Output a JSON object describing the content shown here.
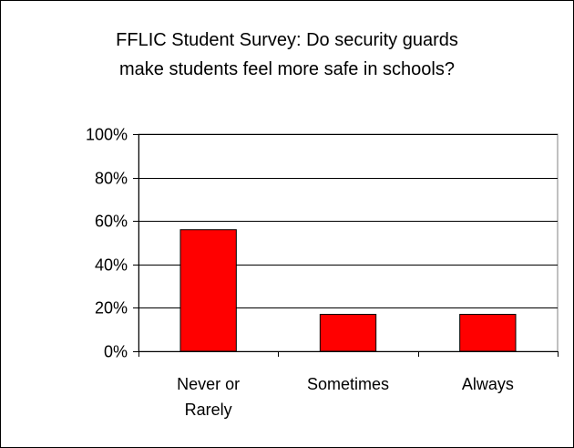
{
  "chart_data": {
    "type": "bar",
    "title_lines": [
      "FFLIC Student Survey: Do security guards",
      "make students feel more safe in schools?"
    ],
    "categories": [
      [
        "Never or",
        "Rarely"
      ],
      [
        "Sometimes"
      ],
      [
        "Always"
      ]
    ],
    "values": [
      56,
      17,
      17
    ],
    "value_format": "percent",
    "ylim": [
      0,
      100
    ],
    "yticks": [
      0,
      20,
      40,
      60,
      80,
      100
    ],
    "ytick_labels": [
      "0%",
      "20%",
      "40%",
      "60%",
      "80%",
      "100%"
    ],
    "grid": true,
    "legend": "none",
    "bar_color": "#ff0000",
    "bar_edge_color": "#000000"
  }
}
